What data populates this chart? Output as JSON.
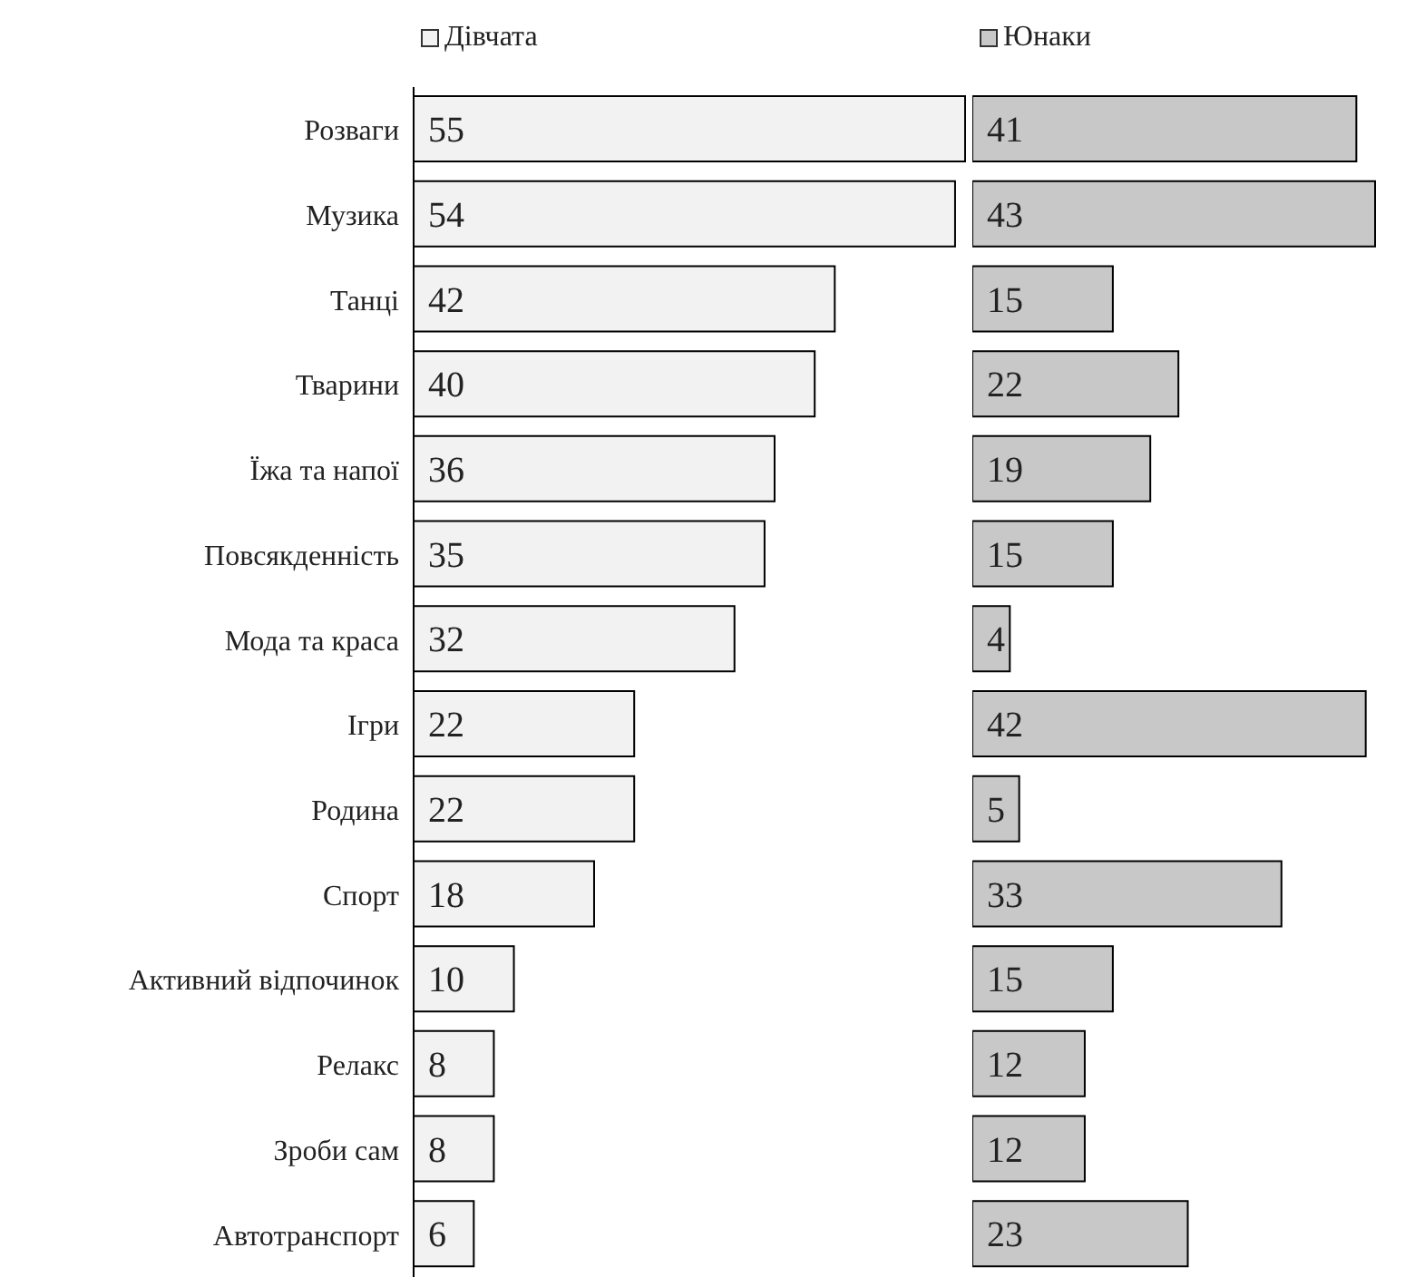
{
  "chart_data": [
    {
      "type": "bar",
      "orientation": "horizontal",
      "categories": [
        "Розваги",
        "Музика",
        "Танці",
        "Тварини",
        "Їжа та напої",
        "Повсякденність",
        "Мода та краса",
        "Ігри",
        "Родина",
        "Спорт",
        "Активний відпочинок",
        "Релакс",
        "Зроби сам",
        "Автотранспорт"
      ],
      "series": [
        {
          "name": "Дівчата",
          "color": "#f2f2f2",
          "values": [
            55,
            54,
            42,
            40,
            36,
            35,
            32,
            22,
            22,
            18,
            10,
            8,
            8,
            6
          ]
        }
      ],
      "data_labels": true,
      "legend": "top",
      "tick_labels": "y"
    },
    {
      "type": "bar",
      "orientation": "horizontal",
      "categories": [
        null,
        null,
        null,
        null,
        null,
        null,
        null,
        null,
        null,
        null,
        null,
        null,
        null,
        null
      ],
      "series": [
        {
          "name": "Юнаки",
          "color": "#c8c8c8",
          "values": [
            41,
            43,
            15,
            22,
            19,
            15,
            4,
            42,
            5,
            33,
            15,
            12,
            12,
            23
          ]
        }
      ],
      "data_labels": true,
      "legend": "top",
      "tick_labels": false
    }
  ]
}
